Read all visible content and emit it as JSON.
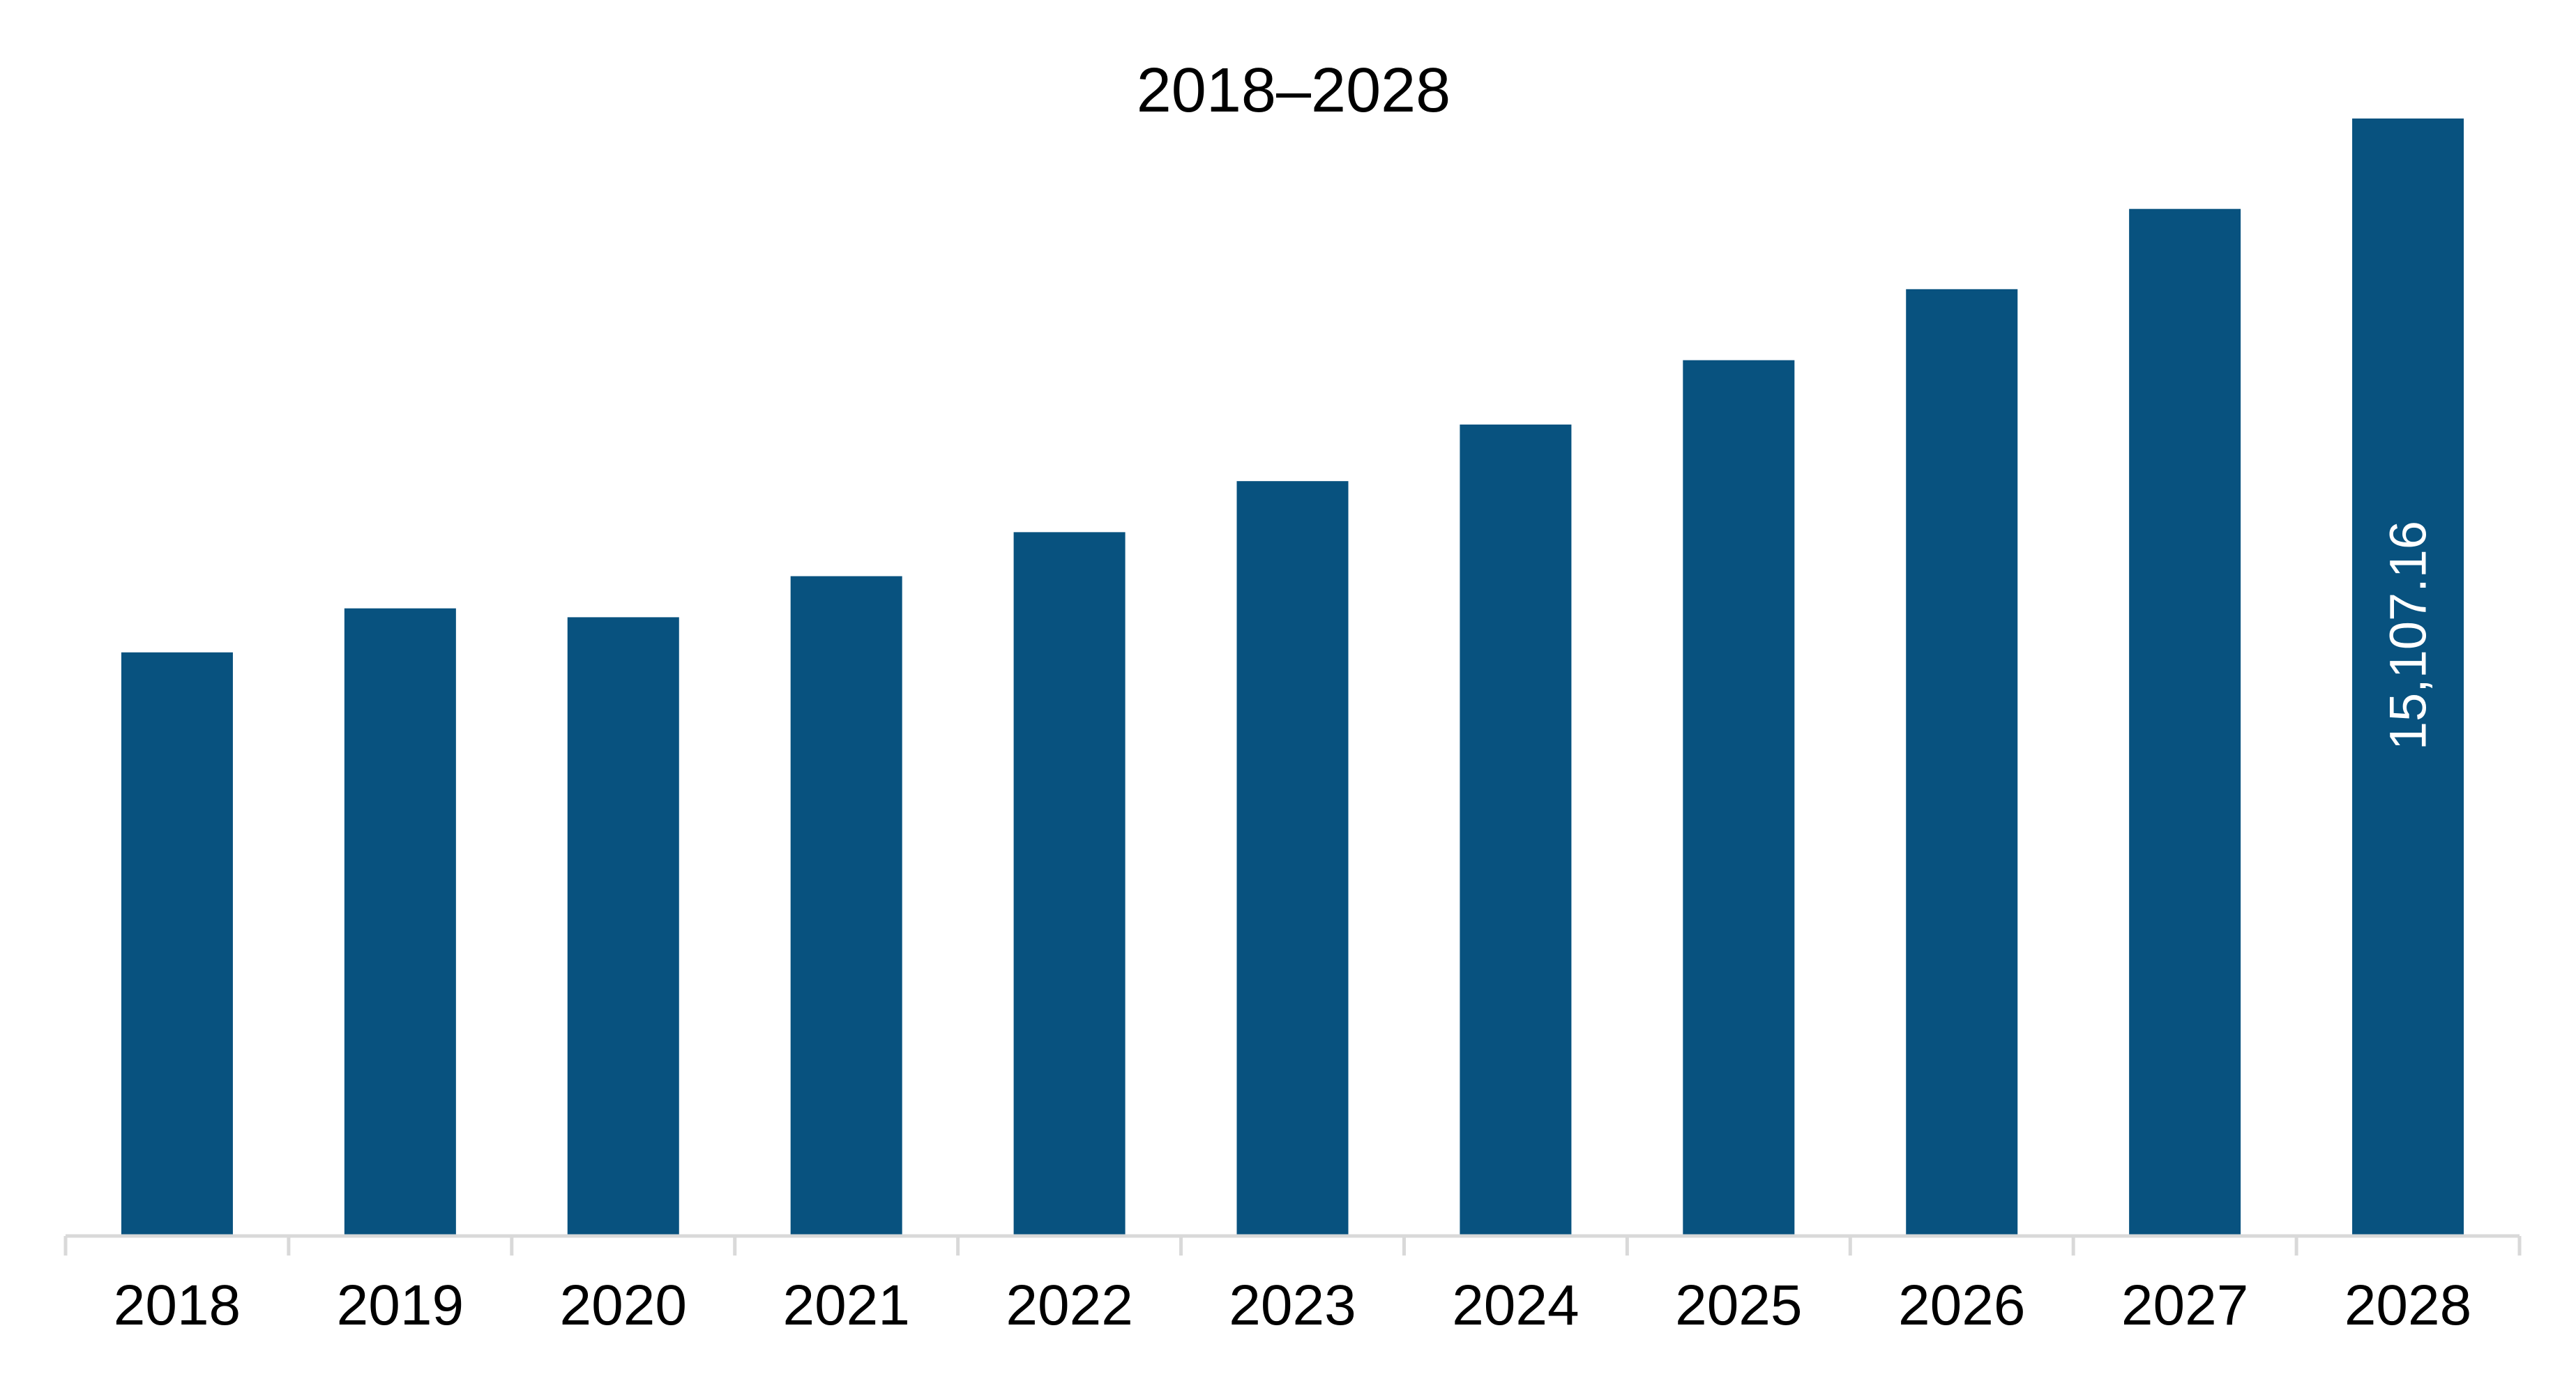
{
  "chart_data": {
    "type": "bar",
    "title": "2018–2028",
    "categories": [
      "2018",
      "2019",
      "2020",
      "2021",
      "2022",
      "2023",
      "2024",
      "2025",
      "2026",
      "2027",
      "2028"
    ],
    "values": [
      7890,
      8485,
      8365,
      8920,
      9515,
      10205,
      10970,
      11840,
      12800,
      13885,
      15107.16
    ],
    "data_labels": [
      "",
      "",
      "",
      "",
      "",
      "",
      "",
      "",
      "",
      "",
      "15,107.16"
    ],
    "ylim": [
      0,
      15107.16
    ],
    "xlabel": "",
    "ylabel": "",
    "grid": false,
    "legend": "none",
    "bar_color": "#08527F",
    "axis_color": "#D9D9D9"
  }
}
